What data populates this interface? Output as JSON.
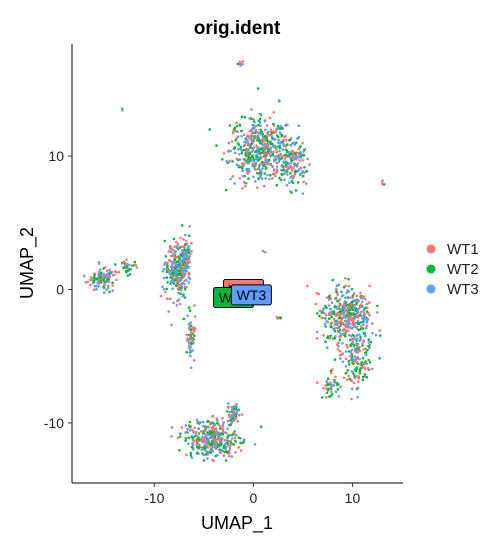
{
  "chart_data": {
    "type": "scatter",
    "title": "orig.ident",
    "xlabel": "UMAP_1",
    "ylabel": "UMAP_2",
    "xlim": [
      -18.3,
      15.1
    ],
    "ylim": [
      -14.5,
      18.4
    ],
    "xticks": [
      -10,
      0,
      10
    ],
    "yticks": [
      -10,
      0,
      10
    ],
    "grid": false,
    "legend_position": "right",
    "series": [
      {
        "name": "WT1",
        "color": "#F8766D"
      },
      {
        "name": "WT2",
        "color": "#00BA38"
      },
      {
        "name": "WT3",
        "color": "#619CFF"
      }
    ],
    "clusters": [
      {
        "center": [
          0.8,
          10.5
        ],
        "spread": [
          2.6,
          2.0
        ],
        "count": 520
      },
      {
        "center": [
          4.0,
          9.5
        ],
        "spread": [
          1.2,
          1.3
        ],
        "count": 130
      },
      {
        "center": [
          -7.8,
          1.4
        ],
        "spread": [
          0.9,
          1.8
        ],
        "count": 240
      },
      {
        "center": [
          -6.8,
          2.2
        ],
        "spread": [
          0.5,
          1.3
        ],
        "count": 90
      },
      {
        "center": [
          -15.3,
          0.8
        ],
        "spread": [
          1.1,
          0.7
        ],
        "count": 110
      },
      {
        "center": [
          -12.6,
          1.6
        ],
        "spread": [
          0.7,
          0.4
        ],
        "count": 30
      },
      {
        "center": [
          -6.3,
          -3.5
        ],
        "spread": [
          0.4,
          1.7
        ],
        "count": 60
      },
      {
        "center": [
          9.5,
          -2.0
        ],
        "spread": [
          2.0,
          1.8
        ],
        "count": 420
      },
      {
        "center": [
          10.4,
          -5.5
        ],
        "spread": [
          1.1,
          1.7
        ],
        "count": 130
      },
      {
        "center": [
          7.8,
          -7.2
        ],
        "spread": [
          0.8,
          0.8
        ],
        "count": 40
      },
      {
        "center": [
          -4.2,
          -11.2
        ],
        "spread": [
          2.2,
          1.2
        ],
        "count": 340
      },
      {
        "center": [
          -2.0,
          -9.3
        ],
        "spread": [
          0.6,
          0.6
        ],
        "count": 50
      },
      {
        "center": [
          -1.3,
          16.9
        ],
        "spread": [
          0.2,
          0.2
        ],
        "count": 8
      },
      {
        "center": [
          -13.2,
          13.5
        ],
        "spread": [
          0.1,
          0.1
        ],
        "count": 2
      },
      {
        "center": [
          13.0,
          8.0
        ],
        "spread": [
          0.15,
          0.2
        ],
        "count": 4
      },
      {
        "center": [
          1.1,
          2.8
        ],
        "spread": [
          0.1,
          0.1
        ],
        "count": 2
      },
      {
        "center": [
          2.5,
          -2.1
        ],
        "spread": [
          0.3,
          0.1
        ],
        "count": 6
      },
      {
        "center": [
          -2.0,
          -1.2
        ],
        "spread": [
          0.2,
          0.3
        ],
        "count": 6
      }
    ],
    "labels": [
      {
        "text": "WT1",
        "x": -1.0,
        "y": 0.0,
        "color": "#F8766D"
      },
      {
        "text": "WT2",
        "x": -2.0,
        "y": -0.6,
        "color": "#00BA38"
      },
      {
        "text": "WT3",
        "x": -0.2,
        "y": -0.4,
        "color": "#619CFF"
      }
    ]
  }
}
